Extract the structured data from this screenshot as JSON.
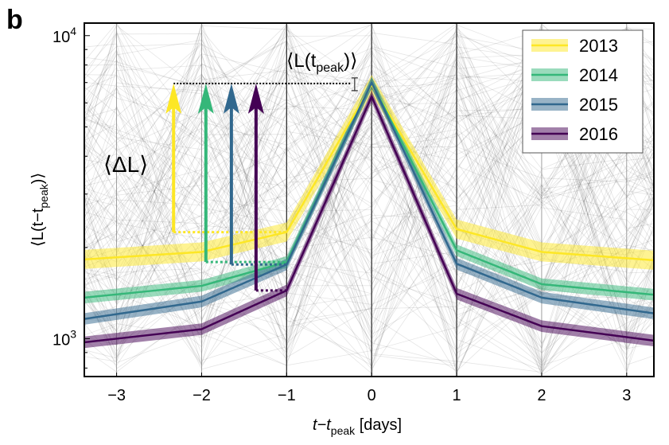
{
  "panel_label": "b",
  "chart_data": {
    "type": "line",
    "title": "",
    "xlabel": "t−t",
    "xlabel_sub": "peak",
    "xlabel_unit": " [days]",
    "ylabel": "⟨L(t−t",
    "ylabel_sub": "peak",
    "ylabel_end": ")⟩",
    "xlim": [
      -3.38,
      3.32
    ],
    "ylim": [
      750,
      11000
    ],
    "yscale": "log",
    "x_ticks": [
      -3,
      -2,
      -1,
      0,
      1,
      2,
      3
    ],
    "x_tick_labels": [
      "−3",
      "−2",
      "−1",
      "0",
      "1",
      "2",
      "3"
    ],
    "y_ticks": [
      1000,
      10000
    ],
    "y_tick_labels": [
      {
        "base": "10",
        "exp": "3"
      },
      {
        "base": "10",
        "exp": "4"
      }
    ],
    "grid": "vertical lines at integer days",
    "legend": "top-right",
    "x": [
      -3,
      -2,
      -1,
      0,
      1,
      2,
      3
    ],
    "series": [
      {
        "name": "2013",
        "color": "#fde725",
        "band_rel": 0.075,
        "values": [
          1855,
          1933,
          2247,
          6900,
          2300,
          1933,
          1843
        ]
      },
      {
        "name": "2014",
        "color": "#35b779",
        "band_rel": 0.045,
        "values": [
          1400,
          1494,
          1790,
          7000,
          1958,
          1513,
          1424
        ]
      },
      {
        "name": "2015",
        "color": "#31688e",
        "band_rel": 0.045,
        "values": [
          1205,
          1326,
          1757,
          7000,
          1767,
          1366,
          1248
        ]
      },
      {
        "name": "2016",
        "color": "#440154",
        "band_rel": 0.045,
        "values": [
          1000,
          1075,
          1442,
          6300,
          1407,
          1100,
          1012
        ]
      }
    ],
    "annotations": {
      "peak_label": "⟨L(t",
      "peak_label_sub": "peak",
      "peak_label_end": ")⟩",
      "delta_label": "⟨ΔL⟩",
      "peak_level": 6950,
      "arrows": [
        {
          "series": "2013",
          "x": -2.33,
          "from": 2247
        },
        {
          "series": "2014",
          "x": -1.95,
          "from": 1790
        },
        {
          "series": "2015",
          "x": -1.65,
          "from": 1757
        },
        {
          "series": "2016",
          "x": -1.36,
          "from": 1442
        }
      ]
    }
  }
}
